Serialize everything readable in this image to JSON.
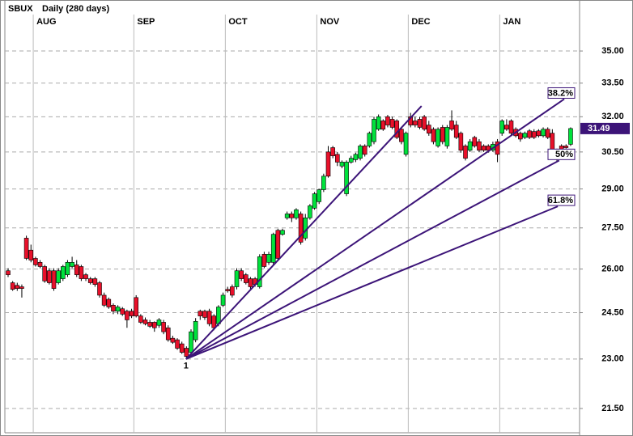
{
  "chart_data": {
    "type": "candlestick",
    "title": "SBUX",
    "subtitle": "Daily (280 days)",
    "log_y": true,
    "grid": true,
    "up_color": "#00e23c",
    "down_color": "#e8102a",
    "fan_color": "#3c1478",
    "tag_color": "#3c1478",
    "ylim": [
      20.8,
      37.52
    ],
    "yticks": [
      {
        "value": 21.5,
        "label": "21.50"
      },
      {
        "value": 23,
        "label": "23.00"
      },
      {
        "value": 24.5,
        "label": "24.50"
      },
      {
        "value": 26,
        "label": "26.00"
      },
      {
        "value": 27.5,
        "label": "27.50"
      },
      {
        "value": 29,
        "label": "29.00"
      },
      {
        "value": 30.5,
        "label": "30.50"
      },
      {
        "value": 32,
        "label": "32.00"
      },
      {
        "value": 33.5,
        "label": "33.50"
      },
      {
        "value": 35,
        "label": "35.00"
      }
    ],
    "categories": [
      null,
      null,
      null,
      null,
      null,
      null,
      "AUG",
      null,
      null,
      null,
      null,
      null,
      null,
      null,
      null,
      null,
      null,
      null,
      null,
      null,
      null,
      null,
      null,
      null,
      null,
      null,
      null,
      null,
      "SEP",
      null,
      null,
      null,
      null,
      null,
      null,
      null,
      null,
      null,
      null,
      null,
      null,
      null,
      null,
      null,
      null,
      null,
      null,
      null,
      "OCT",
      null,
      null,
      null,
      null,
      null,
      null,
      null,
      null,
      null,
      null,
      null,
      null,
      null,
      null,
      null,
      null,
      null,
      null,
      null,
      "NOV",
      null,
      null,
      null,
      null,
      null,
      null,
      null,
      null,
      null,
      null,
      null,
      null,
      null,
      null,
      null,
      null,
      null,
      null,
      null,
      "DEC",
      null,
      null,
      null,
      null,
      null,
      null,
      null,
      null,
      null,
      null,
      null,
      null,
      null,
      null,
      null,
      null,
      null,
      null,
      null,
      "JAN",
      null,
      null,
      null,
      null,
      null,
      null,
      null,
      null,
      null,
      null,
      null,
      null,
      null,
      null,
      null
    ],
    "open": [
      25.94,
      25.52,
      25.43,
      25.38,
      27.12,
      26.68,
      26.38,
      26.24,
      26.09,
      25.94,
      25.94,
      25.52,
      25.66,
      25.8,
      26.09,
      26.15,
      26.09,
      25.8,
      25.66,
      25.66,
      25.52,
      25.09,
      24.95,
      24.75,
      24.55,
      24.63,
      24.55,
      24.55,
      25.01,
      24.39,
      24.26,
      24.18,
      24.18,
      24.08,
      24.18,
      24.0,
      23.66,
      23.61,
      23.48,
      23.34,
      23.21,
      23.61,
      24.55,
      24.55,
      24.55,
      24.39,
      24.13,
      24.75,
      25.29,
      25.38,
      25.38,
      25.94,
      25.8,
      25.66,
      25.66,
      25.38,
      26.53,
      26.24,
      26.24,
      27.41,
      27.26,
      27.88,
      28.03,
      27.88,
      28.03,
      27.12,
      27.88,
      28.25,
      28.5,
      28.97,
      30.5,
      30.68,
      30.4,
      29.92,
      28.81,
      30.08,
      30.18,
      30.24,
      30.75,
      30.75,
      30.93,
      31.46,
      31.82,
      32.0,
      31.89,
      31.82,
      31.46,
      30.4,
      32.0,
      31.82,
      31.89,
      32.0,
      31.64,
      31.46,
      30.75,
      31.54,
      30.75,
      31.82,
      31.64,
      31.29,
      30.75,
      30.57,
      31.11,
      30.93,
      30.75,
      30.75,
      30.57,
      30.93,
      31.29,
      31.64,
      31.82,
      31.46,
      31.29,
      31.11,
      31.39,
      31.36,
      31.39,
      31.18,
      31.46,
      31.29,
      30.57,
      30.75,
      30.75,
      30.82
    ],
    "high": [
      26.03,
      25.58,
      25.52,
      25.46,
      27.21,
      26.88,
      26.44,
      26.32,
      26.15,
      26.03,
      26.03,
      26.03,
      26.15,
      26.32,
      26.44,
      26.32,
      26.15,
      25.86,
      25.72,
      25.72,
      25.58,
      25.18,
      25.01,
      24.81,
      24.75,
      24.69,
      24.6,
      24.63,
      25.09,
      24.45,
      24.34,
      24.26,
      24.21,
      24.32,
      24.26,
      24.08,
      23.74,
      23.66,
      23.55,
      23.4,
      23.95,
      24.32,
      24.6,
      24.6,
      24.63,
      24.45,
      24.75,
      25.18,
      25.38,
      25.46,
      26.03,
      26.03,
      25.86,
      25.72,
      25.72,
      26.53,
      26.62,
      26.62,
      27.32,
      27.47,
      27.47,
      28.12,
      28.12,
      28.25,
      28.12,
      28.03,
      28.41,
      28.88,
      29.0,
      29.61,
      30.75,
      30.75,
      30.5,
      30.15,
      30.15,
      30.34,
      30.47,
      30.82,
      30.82,
      31.36,
      32.0,
      32.1,
      31.89,
      32.08,
      32.0,
      31.89,
      31.54,
      31.36,
      32.17,
      32.0,
      32.0,
      32.08,
      31.82,
      31.54,
      31.54,
      31.64,
      31.64,
      32.28,
      31.82,
      31.36,
      30.82,
      31.04,
      31.18,
      31.04,
      30.82,
      30.82,
      30.93,
      31.04,
      31.89,
      31.89,
      31.89,
      31.54,
      31.36,
      31.36,
      31.46,
      31.46,
      31.46,
      31.54,
      31.54,
      31.46,
      30.64,
      30.82,
      30.82,
      31.54
    ],
    "low": [
      25.72,
      25.24,
      25.24,
      25.01,
      26.32,
      26.24,
      26.09,
      26.03,
      25.52,
      25.46,
      25.24,
      25.46,
      25.58,
      25.72,
      26.03,
      25.72,
      25.58,
      25.58,
      25.46,
      25.38,
      25.01,
      24.69,
      24.63,
      24.45,
      24.45,
      24.39,
      24.0,
      24.32,
      24.34,
      24.13,
      24.08,
      24.0,
      23.87,
      24.0,
      23.79,
      23.55,
      23.48,
      23.29,
      23.16,
      23.0,
      23.16,
      23.53,
      24.26,
      24.26,
      24.05,
      23.92,
      24.05,
      24.69,
      25.18,
      25.01,
      25.29,
      25.58,
      25.46,
      25.29,
      25.38,
      25.32,
      26.03,
      26.15,
      26.15,
      26.32,
      27.21,
      27.81,
      27.72,
      27.81,
      26.88,
      27.03,
      27.81,
      28.19,
      28.41,
      28.88,
      29.45,
      30.24,
      29.92,
      29.83,
      28.72,
      30.02,
      30.08,
      30.15,
      30.31,
      30.68,
      30.82,
      31.39,
      31.39,
      31.54,
      31.46,
      31.04,
      30.82,
      30.31,
      31.54,
      31.54,
      31.46,
      31.39,
      31.18,
      30.82,
      30.68,
      30.82,
      30.64,
      31.39,
      31.04,
      30.47,
      30.15,
      30.5,
      30.68,
      30.5,
      30.5,
      30.47,
      30.5,
      30.08,
      31.18,
      31.39,
      31.18,
      31.11,
      30.93,
      31.04,
      31.04,
      31.04,
      31.11,
      31.11,
      31.04,
      30.34,
      30.08,
      30.5,
      30.64,
      30.75
    ],
    "close": [
      25.8,
      25.29,
      25.32,
      25.32,
      26.38,
      26.32,
      26.15,
      26.09,
      25.58,
      25.52,
      25.32,
      25.94,
      26.09,
      26.24,
      26.24,
      25.8,
      25.66,
      25.66,
      25.52,
      25.46,
      25.09,
      24.75,
      24.69,
      24.55,
      24.69,
      24.45,
      24.26,
      24.39,
      24.39,
      24.18,
      24.13,
      24.05,
      24.0,
      24.26,
      23.87,
      23.61,
      23.53,
      23.34,
      23.21,
      23.08,
      23.87,
      24.21,
      24.39,
      24.34,
      24.13,
      24.0,
      24.69,
      25.09,
      25.24,
      25.09,
      25.94,
      25.66,
      25.52,
      25.38,
      25.46,
      26.44,
      26.09,
      26.53,
      27.26,
      26.38,
      27.41,
      28.03,
      27.88,
      28.19,
      26.97,
      27.88,
      28.34,
      28.81,
      28.97,
      29.51,
      29.51,
      30.34,
      30.08,
      30.08,
      30.08,
      30.24,
      30.4,
      30.75,
      30.4,
      31.29,
      31.89,
      32.0,
      31.46,
      31.64,
      31.54,
      31.11,
      30.93,
      31.29,
      31.64,
      31.64,
      31.54,
      31.46,
      31.29,
      30.93,
      31.46,
      30.93,
      31.54,
      31.46,
      31.11,
      30.57,
      30.24,
      30.93,
      30.75,
      30.57,
      30.57,
      30.57,
      30.82,
      30.4,
      31.82,
      31.46,
      31.29,
      31.18,
      31.04,
      31.29,
      31.11,
      31.11,
      31.18,
      31.46,
      31.11,
      30.4,
      30.24,
      30.57,
      30.68,
      31.49
    ],
    "fan": {
      "origin_label": "1",
      "origin": {
        "x": 38.9,
        "y": 23.0
      },
      "lines": [
        {
          "end": {
            "x": 90.4,
            "y": 32.47
          }
        },
        {
          "label": "38.2%",
          "end": {
            "x": 121.6,
            "y": 32.78
          }
        },
        {
          "label": "50%",
          "end": {
            "x": 120.5,
            "y": 30.15
          }
        },
        {
          "label": "61.8%",
          "end": {
            "x": 120.2,
            "y": 28.32
          }
        }
      ]
    }
  }
}
